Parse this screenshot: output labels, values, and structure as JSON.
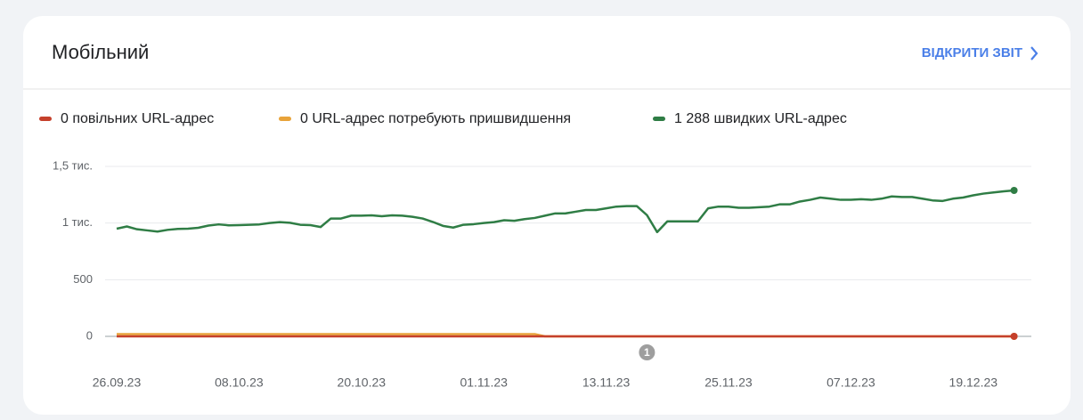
{
  "header": {
    "title": "Мобільний",
    "link": "ВІДКРИТИ ЗВІТ"
  },
  "chart_data": {
    "type": "line",
    "x": [
      "26.09.23",
      "27.09.23",
      "28.09.23",
      "29.09.23",
      "30.09.23",
      "01.10.23",
      "02.10.23",
      "03.10.23",
      "04.10.23",
      "05.10.23",
      "06.10.23",
      "07.10.23",
      "08.10.23",
      "09.10.23",
      "10.10.23",
      "11.10.23",
      "12.10.23",
      "13.10.23",
      "14.10.23",
      "15.10.23",
      "16.10.23",
      "17.10.23",
      "18.10.23",
      "19.10.23",
      "20.10.23",
      "21.10.23",
      "22.10.23",
      "23.10.23",
      "24.10.23",
      "25.10.23",
      "26.10.23",
      "27.10.23",
      "28.10.23",
      "29.10.23",
      "30.10.23",
      "31.10.23",
      "01.11.23",
      "02.11.23",
      "03.11.23",
      "04.11.23",
      "05.11.23",
      "06.11.23",
      "07.11.23",
      "08.11.23",
      "09.11.23",
      "10.11.23",
      "11.11.23",
      "12.11.23",
      "13.11.23",
      "14.11.23",
      "15.11.23",
      "16.11.23",
      "17.11.23",
      "18.11.23",
      "19.11.23",
      "20.11.23",
      "21.11.23",
      "22.11.23",
      "23.11.23",
      "24.11.23",
      "25.11.23",
      "26.11.23",
      "27.11.23",
      "28.11.23",
      "29.11.23",
      "30.11.23",
      "01.12.23",
      "02.12.23",
      "03.12.23",
      "04.12.23",
      "05.12.23",
      "06.12.23",
      "07.12.23",
      "08.12.23",
      "09.12.23",
      "10.12.23",
      "11.12.23",
      "12.12.23",
      "13.12.23",
      "14.12.23",
      "15.12.23",
      "16.12.23",
      "17.12.23",
      "18.12.23",
      "19.12.23",
      "20.12.23",
      "21.12.23",
      "22.12.23",
      "23.12.23"
    ],
    "series": [
      {
        "name": "0 повільних URL-адрес",
        "color": "#c5402b",
        "values": [
          0,
          0,
          0,
          0,
          0,
          0,
          0,
          0,
          0,
          0,
          0,
          0,
          0,
          0,
          0,
          0,
          0,
          0,
          0,
          0,
          0,
          0,
          0,
          0,
          0,
          0,
          0,
          0,
          0,
          0,
          0,
          0,
          0,
          0,
          0,
          0,
          0,
          0,
          0,
          0,
          0,
          0,
          0,
          0,
          0,
          0,
          0,
          0,
          0,
          0,
          0,
          0,
          0,
          0,
          0,
          0,
          0,
          0,
          0,
          0,
          0,
          0,
          0,
          0,
          0,
          0,
          0,
          0,
          0,
          0,
          0,
          0,
          0,
          0,
          0,
          0,
          0,
          0,
          0,
          0,
          0,
          0,
          0,
          0,
          0,
          0,
          0,
          0,
          0
        ]
      },
      {
        "name": "0 URL-адрес потребують пришвидшення",
        "color": "#e8a33a",
        "values": [
          20,
          20,
          20,
          20,
          20,
          20,
          20,
          20,
          20,
          20,
          20,
          20,
          20,
          20,
          20,
          20,
          20,
          20,
          20,
          20,
          20,
          20,
          20,
          20,
          20,
          20,
          20,
          20,
          20,
          20,
          20,
          20,
          20,
          20,
          20,
          20,
          20,
          20,
          20,
          20,
          20,
          20,
          0,
          0,
          0,
          0,
          0,
          0,
          0,
          0,
          0,
          0,
          0,
          0,
          0,
          0,
          0,
          0,
          0,
          0,
          0,
          0,
          0,
          0,
          0,
          0,
          0,
          0,
          0,
          0,
          0,
          0,
          0,
          0,
          0,
          0,
          0,
          0,
          0,
          0,
          0,
          0,
          0,
          0,
          0,
          0,
          0,
          0,
          0
        ]
      },
      {
        "name": "1 288 швидких URL-адрес",
        "color": "#2f7d45",
        "values": [
          950,
          970,
          945,
          935,
          925,
          940,
          948,
          950,
          958,
          978,
          988,
          980,
          982,
          985,
          988,
          1000,
          1008,
          1002,
          985,
          982,
          965,
          1040,
          1040,
          1065,
          1065,
          1068,
          1060,
          1068,
          1065,
          1055,
          1040,
          1010,
          975,
          960,
          985,
          990,
          1000,
          1008,
          1025,
          1020,
          1035,
          1045,
          1065,
          1085,
          1085,
          1100,
          1115,
          1115,
          1130,
          1145,
          1150,
          1150,
          1070,
          920,
          1015,
          1015,
          1015,
          1015,
          1130,
          1145,
          1145,
          1135,
          1135,
          1140,
          1145,
          1165,
          1165,
          1190,
          1205,
          1225,
          1215,
          1205,
          1205,
          1210,
          1205,
          1215,
          1235,
          1230,
          1230,
          1215,
          1200,
          1195,
          1215,
          1225,
          1245,
          1260,
          1270,
          1280,
          1288
        ]
      }
    ],
    "xticks": [
      "26.09.23",
      "08.10.23",
      "20.10.23",
      "01.11.23",
      "13.11.23",
      "25.11.23",
      "07.12.23",
      "19.12.23"
    ],
    "ylim": [
      0,
      1500
    ],
    "yticks": [
      0,
      500,
      {
        "value": 1000,
        "label": "1 тис."
      },
      {
        "value": 1500,
        "label": "1,5 тис."
      }
    ],
    "grid": true,
    "annotations": [
      {
        "x": "17.11.23",
        "label": "1"
      }
    ]
  }
}
